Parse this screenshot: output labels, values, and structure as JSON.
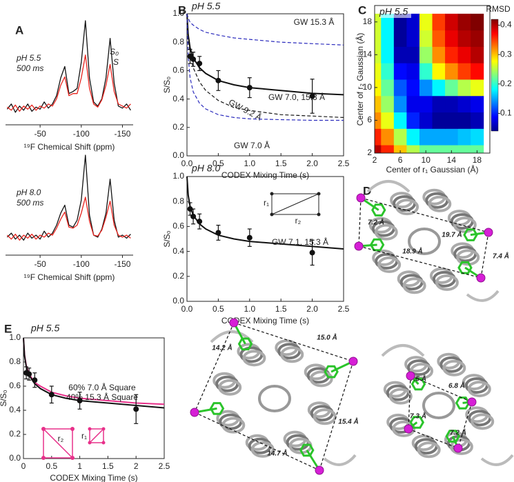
{
  "panel_labels": [
    "A",
    "B",
    "C",
    "D",
    "E"
  ],
  "chart_data": [
    {
      "type": "spectrum",
      "title_lines": [
        "pH 5.5",
        "500 ms"
      ],
      "xlabel": "¹⁹F Chemical Shift (ppm)",
      "xlim": [
        -8,
        -163
      ],
      "ylim": [
        0,
        1
      ],
      "xticks": [
        -50,
        -100,
        -150
      ],
      "x": [
        -10,
        -15,
        -20,
        -25,
        -30,
        -35,
        -40,
        -45,
        -50,
        -55,
        -60,
        -65,
        -70,
        -75,
        -80,
        -85,
        -90,
        -95,
        -100,
        -105,
        -110,
        -115,
        -120,
        -125,
        -130,
        -135,
        -140,
        -145,
        -150,
        -155,
        -160
      ],
      "series": [
        {
          "name": "S₀",
          "color": "#111111",
          "values": [
            0.15,
            0.2,
            0.12,
            0.18,
            0.14,
            0.2,
            0.13,
            0.17,
            0.15,
            0.22,
            0.16,
            0.2,
            0.28,
            0.45,
            0.56,
            0.3,
            0.32,
            0.35,
            0.6,
            1.0,
            0.45,
            0.22,
            0.18,
            0.25,
            0.45,
            0.83,
            0.4,
            0.18,
            0.16,
            0.2,
            0.14
          ]
        },
        {
          "name": "S",
          "color": "#e8221c",
          "values": [
            0.17,
            0.14,
            0.19,
            0.13,
            0.18,
            0.15,
            0.19,
            0.14,
            0.18,
            0.16,
            0.2,
            0.18,
            0.25,
            0.38,
            0.46,
            0.28,
            0.3,
            0.3,
            0.45,
            0.67,
            0.35,
            0.2,
            0.17,
            0.24,
            0.38,
            0.58,
            0.32,
            0.2,
            0.18,
            0.16,
            0.2
          ]
        }
      ]
    },
    {
      "type": "spectrum",
      "title_lines": [
        "pH 8.0",
        "500 ms"
      ],
      "xlabel": "¹⁹F Chemical Shift (ppm)",
      "xlim": [
        -8,
        -163
      ],
      "ylim": [
        0,
        1
      ],
      "xticks": [
        -50,
        -100,
        -150
      ],
      "x": [
        -10,
        -15,
        -20,
        -25,
        -30,
        -35,
        -40,
        -45,
        -50,
        -55,
        -60,
        -65,
        -70,
        -75,
        -80,
        -85,
        -90,
        -95,
        -100,
        -105,
        -110,
        -115,
        -120,
        -125,
        -130,
        -135,
        -140,
        -145,
        -150,
        -155,
        -160
      ],
      "series": [
        {
          "color": "#111111",
          "values": [
            0.18,
            0.22,
            0.16,
            0.2,
            0.15,
            0.22,
            0.17,
            0.2,
            0.16,
            0.24,
            0.18,
            0.22,
            0.3,
            0.42,
            0.5,
            0.3,
            0.28,
            0.35,
            0.55,
            1.0,
            0.4,
            0.2,
            0.18,
            0.26,
            0.42,
            0.76,
            0.35,
            0.18,
            0.2,
            0.17,
            0.21
          ]
        },
        {
          "color": "#e8221c",
          "values": [
            0.2,
            0.16,
            0.21,
            0.15,
            0.2,
            0.17,
            0.21,
            0.16,
            0.2,
            0.18,
            0.22,
            0.2,
            0.27,
            0.36,
            0.43,
            0.28,
            0.27,
            0.3,
            0.42,
            0.58,
            0.34,
            0.2,
            0.19,
            0.25,
            0.38,
            0.54,
            0.3,
            0.2,
            0.18,
            0.2,
            0.17
          ]
        }
      ]
    },
    {
      "type": "line",
      "title": "pH 5.5",
      "xlabel": "CODEX Mixing Time (s)",
      "ylabel": "S/S₀",
      "xlim": [
        0,
        2.5
      ],
      "ylim": [
        0,
        1
      ],
      "xticks": [
        {
          "value": 0,
          "label": "0.0"
        },
        0.5,
        {
          "value": 1,
          "label": "1.0"
        },
        1.5,
        {
          "value": 2,
          "label": "2.0"
        },
        2.5
      ],
      "yticks": [
        {
          "value": 0,
          "label": "0.0"
        },
        0.2,
        0.4,
        0.6,
        0.8,
        {
          "value": 1,
          "label": "1.0"
        }
      ],
      "series": [
        {
          "name": "GW 15.3 Å",
          "color": "#2b2bbd",
          "dash": true,
          "x": [
            0,
            0.02,
            0.05,
            0.1,
            0.2,
            0.3,
            0.5,
            0.75,
            1,
            1.5,
            2,
            2.5
          ],
          "values": [
            1,
            0.97,
            0.94,
            0.92,
            0.89,
            0.87,
            0.85,
            0.83,
            0.82,
            0.8,
            0.79,
            0.78
          ]
        },
        {
          "name": "GW 7.0, 15.3 Å",
          "color": "#111111",
          "dash": false,
          "x": [
            0,
            0.02,
            0.05,
            0.1,
            0.2,
            0.3,
            0.5,
            0.75,
            1,
            1.5,
            2,
            2.5
          ],
          "values": [
            1,
            0.85,
            0.76,
            0.69,
            0.62,
            0.58,
            0.53,
            0.5,
            0.48,
            0.46,
            0.44,
            0.43
          ]
        },
        {
          "name": "GW 9.2 Å",
          "color": "#111111",
          "dash": true,
          "x": [
            0,
            0.02,
            0.05,
            0.1,
            0.2,
            0.3,
            0.5,
            0.75,
            1,
            1.5,
            2,
            2.5
          ],
          "values": [
            1,
            0.83,
            0.72,
            0.62,
            0.52,
            0.46,
            0.39,
            0.34,
            0.32,
            0.29,
            0.28,
            0.27
          ]
        },
        {
          "name": "GW 7.0 Å",
          "color": "#2b2bbd",
          "dash": true,
          "x": [
            0,
            0.02,
            0.05,
            0.1,
            0.2,
            0.3,
            0.5,
            0.75,
            1,
            1.5,
            2,
            2.5
          ],
          "values": [
            1,
            0.7,
            0.55,
            0.45,
            0.37,
            0.33,
            0.29,
            0.27,
            0.26,
            0.255,
            0.25,
            0.25
          ]
        }
      ],
      "points": {
        "color": "#111111",
        "x": [
          0.05,
          0.1,
          0.2,
          0.5,
          1,
          2
        ],
        "values": [
          0.7,
          0.68,
          0.65,
          0.53,
          0.48,
          0.42
        ],
        "errors": [
          0.05,
          0.05,
          0.05,
          0.07,
          0.07,
          0.12
        ]
      }
    },
    {
      "type": "line",
      "title": "pH 8.0",
      "xlabel": "CODEX Mixing Time (s)",
      "ylabel": "S/S₀",
      "xlim": [
        0,
        2.5
      ],
      "ylim": [
        0,
        1
      ],
      "xticks": [
        {
          "value": 0,
          "label": "0.0"
        },
        0.5,
        {
          "value": 1,
          "label": "1.0"
        },
        1.5,
        {
          "value": 2,
          "label": "2.0"
        },
        2.5
      ],
      "yticks": [
        {
          "value": 0,
          "label": "0.0"
        },
        0.2,
        0.4,
        0.6,
        0.8,
        {
          "value": 1,
          "label": "1.0"
        }
      ],
      "series": [
        {
          "name": "GW 7.1, 15.3 Å",
          "color": "#111111",
          "dash": false,
          "x": [
            0,
            0.02,
            0.05,
            0.1,
            0.2,
            0.3,
            0.5,
            0.75,
            1,
            1.5,
            2,
            2.5
          ],
          "values": [
            1,
            0.85,
            0.76,
            0.69,
            0.62,
            0.58,
            0.53,
            0.5,
            0.48,
            0.46,
            0.44,
            0.42
          ]
        }
      ],
      "points": {
        "color": "#111111",
        "x": [
          0.05,
          0.1,
          0.2,
          0.5,
          1,
          2
        ],
        "values": [
          0.74,
          0.68,
          0.64,
          0.55,
          0.51,
          0.39
        ],
        "errors": [
          0.05,
          0.06,
          0.06,
          0.06,
          0.07,
          0.1
        ]
      },
      "annotations": [
        "r₁",
        "r₂"
      ]
    },
    {
      "type": "contour",
      "title": "pH 5.5",
      "xlabel": "Center of r₁ Gaussian (Å)",
      "ylabel": "Center of r₂ Gaussian (Å)",
      "zlabel": "RMSD",
      "xlim": [
        2,
        20
      ],
      "ylim": [
        2,
        20
      ],
      "xticks": [
        2,
        6,
        10,
        14,
        18
      ],
      "yticks": [
        2,
        6,
        10,
        14,
        18
      ],
      "zlim": [
        0.04,
        0.42
      ],
      "zticks": [
        0.1,
        0.2,
        0.3,
        0.4
      ],
      "x": [
        2,
        4,
        6,
        8,
        10,
        12,
        14,
        16,
        18
      ],
      "y": [
        2,
        4,
        6,
        8,
        10,
        12,
        14,
        16,
        18
      ],
      "z": [
        [
          0.4,
          0.36,
          0.3,
          0.25,
          0.22,
          0.22,
          0.22,
          0.22,
          0.22
        ],
        [
          0.36,
          0.32,
          0.25,
          0.18,
          0.15,
          0.15,
          0.15,
          0.16,
          0.17
        ],
        [
          0.32,
          0.27,
          0.18,
          0.1,
          0.07,
          0.05,
          0.05,
          0.05,
          0.06
        ],
        [
          0.3,
          0.24,
          0.14,
          0.08,
          0.08,
          0.06,
          0.06,
          0.07,
          0.08
        ],
        [
          0.28,
          0.22,
          0.12,
          0.09,
          0.14,
          0.18,
          0.22,
          0.25,
          0.27
        ],
        [
          0.27,
          0.2,
          0.09,
          0.08,
          0.2,
          0.28,
          0.32,
          0.35,
          0.37
        ],
        [
          0.26,
          0.18,
          0.06,
          0.06,
          0.24,
          0.32,
          0.36,
          0.38,
          0.4
        ],
        [
          0.26,
          0.18,
          0.05,
          0.07,
          0.26,
          0.34,
          0.38,
          0.4,
          0.41
        ],
        [
          0.26,
          0.18,
          0.05,
          0.07,
          0.27,
          0.35,
          0.39,
          0.41,
          0.42
        ]
      ]
    },
    {
      "type": "line",
      "title": "pH 5.5",
      "xlabel": "CODEX Mixing Time (s)",
      "ylabel": "S/S₀",
      "xlim": [
        0,
        2.5
      ],
      "ylim": [
        0,
        1
      ],
      "xticks": [
        0,
        0.5,
        1,
        1.5,
        2,
        2.5
      ],
      "yticks": [
        {
          "value": 0,
          "label": "0.0"
        },
        0.2,
        0.4,
        0.6,
        0.8,
        {
          "value": 1,
          "label": "1.0"
        }
      ],
      "series": [
        {
          "label_lines": [
            "60% 7.0 Å Square",
            "40% 15.3 Å Square"
          ],
          "color": "#e8308a",
          "dash": false,
          "x": [
            0,
            0.02,
            0.05,
            0.1,
            0.2,
            0.3,
            0.5,
            0.75,
            1,
            1.5,
            2,
            2.5
          ],
          "values": [
            1,
            0.86,
            0.77,
            0.7,
            0.63,
            0.6,
            0.55,
            0.52,
            0.5,
            0.48,
            0.46,
            0.45
          ]
        },
        {
          "color": "#111111",
          "dash": false,
          "x": [
            0,
            0.02,
            0.05,
            0.1,
            0.2,
            0.3,
            0.5,
            0.75,
            1,
            1.5,
            2,
            2.5
          ],
          "values": [
            1,
            0.85,
            0.76,
            0.69,
            0.62,
            0.58,
            0.53,
            0.5,
            0.48,
            0.46,
            0.44,
            0.42
          ]
        }
      ],
      "points": {
        "color": "#111111",
        "x": [
          0.05,
          0.1,
          0.2,
          0.5,
          1,
          2
        ],
        "values": [
          0.71,
          0.7,
          0.65,
          0.53,
          0.48,
          0.41
        ],
        "errors": [
          0.05,
          0.05,
          0.06,
          0.07,
          0.07,
          0.12
        ]
      },
      "annotations": [
        "r₂",
        "r₁"
      ]
    }
  ],
  "structures": [
    {
      "distances": [
        "7.2 Å",
        "19.7 Å",
        "18.9 Å",
        "7.4 Å"
      ]
    },
    {
      "distances": [
        "14.2 Å",
        "15.0 Å",
        "15.4 Å",
        "14.7 Å"
      ]
    },
    {
      "distances": [
        "7.5 Å",
        "6.8 Å",
        "7.3 Å",
        "7.2 Å"
      ]
    }
  ]
}
